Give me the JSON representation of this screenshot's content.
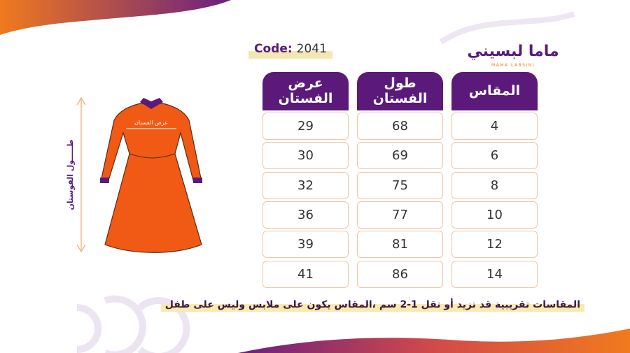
{
  "header": {
    "code_label": "Code:",
    "code_value": "2041",
    "logo_text": "ماما لبسيني",
    "logo_subtext": "MAMA LABSINI"
  },
  "dress": {
    "width_label": "عرض الفستان",
    "length_label": "طـــــول الفوستان"
  },
  "table": {
    "headers": [
      "المقاس",
      "طول الفستان",
      "عرض الفستان"
    ],
    "rows": [
      [
        4,
        68,
        29
      ],
      [
        6,
        69,
        30
      ],
      [
        8,
        75,
        32
      ],
      [
        10,
        77,
        36
      ],
      [
        12,
        81,
        39
      ],
      [
        14,
        86,
        41
      ]
    ]
  },
  "note": "المقاسات تقريبية قد تزيد أو تقل 1-2 سم ،المقاس يكون على ملابس وليس على طفل"
}
